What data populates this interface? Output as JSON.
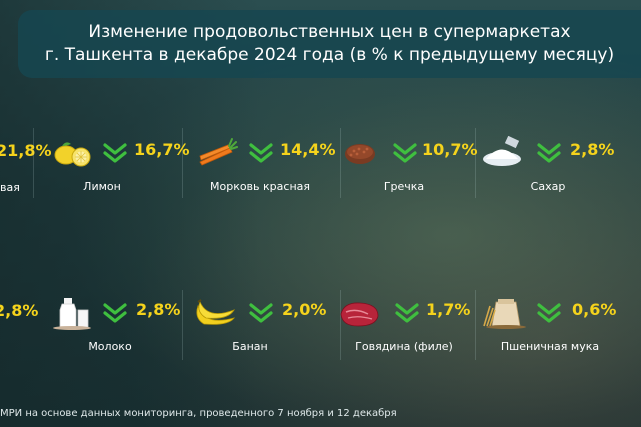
{
  "header": {
    "title_line1": "Изменение продовольственных цен в супермаркетах",
    "title_line2": "г. Ташкента в декабре 2024 года (в % к предыдущему месяцу)"
  },
  "footer": {
    "source": "МРИ на основе данных мониторинга, проведенного 7 ноября и 12 декабря"
  },
  "colors": {
    "value": "#f5d31c",
    "arrow": "#3fbf3f",
    "header_bg": "#164650"
  },
  "partial": {
    "row1_value": "21,8%",
    "row1_label": "вая",
    "row2_value": "2,8%"
  },
  "chart_data": {
    "type": "table",
    "title": "Изменение продовольственных цен в супермаркетах г. Ташкента в декабре 2024 года (в % к предыдущему месяцу)",
    "direction": "down",
    "items": [
      {
        "label": "Лимон",
        "value_text": "16,7%",
        "value": 16.7,
        "icon": "lemon-icon"
      },
      {
        "label": "Морковь красная",
        "value_text": "14,4%",
        "value": 14.4,
        "icon": "carrot-icon"
      },
      {
        "label": "Гречка",
        "value_text": "10,7%",
        "value": 10.7,
        "icon": "buckwheat-icon"
      },
      {
        "label": "Сахар",
        "value_text": "2,8%",
        "value": 2.8,
        "icon": "sugar-icon"
      },
      {
        "label": "Молоко",
        "value_text": "2,8%",
        "value": 2.8,
        "icon": "milk-icon"
      },
      {
        "label": "Банан",
        "value_text": "2,0%",
        "value": 2.0,
        "icon": "banana-icon"
      },
      {
        "label": "Говядина (филе)",
        "value_text": "1,7%",
        "value": 1.7,
        "icon": "beef-icon"
      },
      {
        "label": "Пшеничная мука",
        "value_text": "0,6%",
        "value": 0.6,
        "icon": "flour-icon"
      }
    ]
  }
}
